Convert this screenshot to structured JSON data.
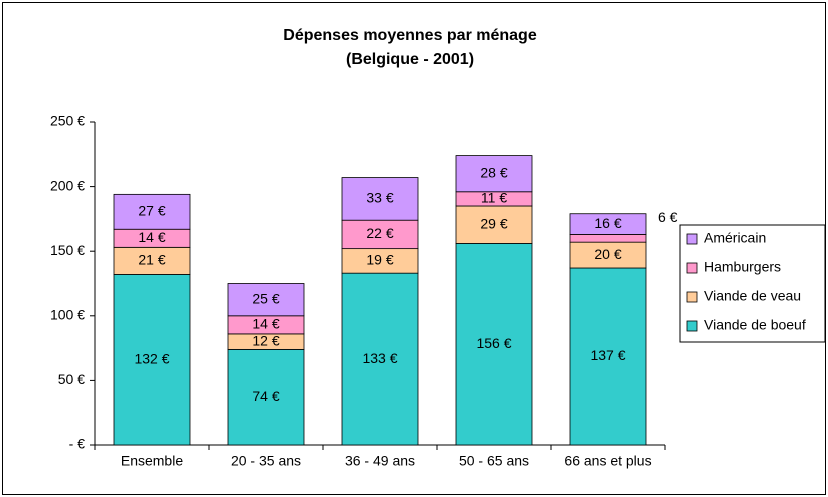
{
  "chart_data": {
    "type": "stacked_bar",
    "title": "Dépenses moyennes par ménage",
    "subtitle": "(Belgique - 2001)",
    "categories": [
      "Ensemble",
      "20 - 35 ans",
      "36 - 49 ans",
      "50 - 65 ans",
      "66 ans et plus"
    ],
    "series": [
      {
        "name": "Viande de boeuf",
        "color": "#33cccc",
        "values": [
          132,
          74,
          133,
          156,
          137
        ],
        "value_labels": [
          "132 €",
          "74 €",
          "133 €",
          "156 €",
          "137 €"
        ]
      },
      {
        "name": "Viande de veau",
        "color": "#ffcc99",
        "values": [
          21,
          12,
          19,
          29,
          20
        ],
        "value_labels": [
          "21 €",
          "12 €",
          "19 €",
          "29 €",
          "20 €"
        ]
      },
      {
        "name": "Hamburgers",
        "color": "#ff99cc",
        "values": [
          14,
          14,
          22,
          11,
          6
        ],
        "value_labels": [
          "14 €",
          "14 €",
          "22 €",
          "11 €",
          "6 €"
        ]
      },
      {
        "name": "Américain",
        "color": "#cc99ff",
        "values": [
          27,
          25,
          33,
          28,
          16
        ],
        "value_labels": [
          "27 €",
          "25 €",
          "33 €",
          "28 €",
          "16 €"
        ]
      }
    ],
    "ylim": [
      0,
      250
    ],
    "yticks": [
      {
        "value": 0,
        "label": "- €"
      },
      {
        "value": 50,
        "label": "50 €"
      },
      {
        "value": 100,
        "label": "100 €"
      },
      {
        "value": 150,
        "label": "150 €"
      },
      {
        "value": 200,
        "label": "200 €"
      },
      {
        "value": 250,
        "label": "250 €"
      }
    ],
    "grid": false,
    "legend": "right"
  }
}
